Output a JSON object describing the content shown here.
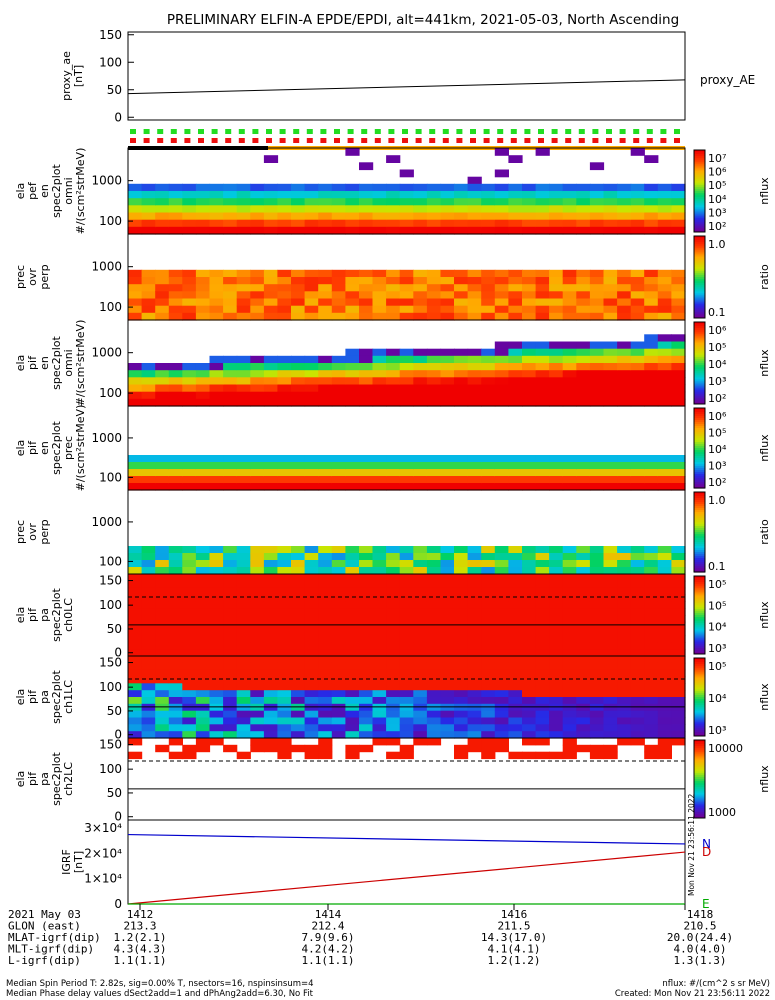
{
  "title": "PRELIMINARY ELFIN-A EPDE/EPDI, alt=441km, 2021-05-03, North Ascending",
  "chart_data": [
    {
      "type": "line",
      "panel": "proxy_ae",
      "ylabel": "proxy_ae\n[nT]",
      "legend": "proxy_AE",
      "ylim": [
        -5,
        155
      ],
      "yticks": [
        "0",
        "50",
        "100",
        "150"
      ],
      "x": [
        "14:11.0",
        "14:18.2"
      ],
      "series": [
        {
          "name": "proxy_AE",
          "values": [
            43,
            68
          ]
        }
      ]
    },
    {
      "type": "heatmap",
      "panel": "ela pef en spec2plot omni",
      "ylabel": "ela\npef\nen\nspec2plot\nomni\n#/(scm²strMeV)",
      "yticks": [
        "100",
        "1000"
      ],
      "colorbar": {
        "unit": "nflux",
        "ticks": [
          "10⁷",
          "10⁶",
          "10⁵",
          "10⁴",
          "10³",
          "10²"
        ]
      }
    },
    {
      "type": "heatmap",
      "panel": "prec ovr perp (electrons)",
      "ylabel": "prec\novr\nperp",
      "yticks": [
        "100",
        "1000"
      ],
      "colorbar": {
        "unit": "ratio",
        "ticks": [
          "1.0",
          "0.1"
        ]
      }
    },
    {
      "type": "heatmap",
      "panel": "ela pif en spec2plot omni",
      "ylabel": "ela\npif\nen\nspec2plot\nomni\n#/(scm²strMeV)",
      "yticks": [
        "100",
        "1000"
      ],
      "colorbar": {
        "unit": "nflux",
        "ticks": [
          "10⁶",
          "10⁵",
          "10⁴",
          "10³",
          "10²"
        ]
      }
    },
    {
      "type": "heatmap",
      "panel": "ela pif en spec2plot prec",
      "ylabel": "ela\npif\nen\nspec2plot\nprec\n#/(scm²strMeV)",
      "yticks": [
        "100",
        "1000"
      ],
      "colorbar": {
        "unit": "nflux",
        "ticks": [
          "10⁶",
          "10⁵",
          "10⁴",
          "10³",
          "10²"
        ]
      }
    },
    {
      "type": "heatmap",
      "panel": "prec ovr perp (ions)",
      "ylabel": "prec\novr\nperp",
      "yticks": [
        "100",
        "1000"
      ],
      "colorbar": {
        "unit": "ratio",
        "ticks": [
          "1.0",
          "0.1"
        ]
      }
    },
    {
      "type": "heatmap",
      "panel": "ela pif pa spec2plot ch0LC",
      "ylabel": "ela\npif\npa\nspec2plot\nch0LC",
      "yticks": [
        "0",
        "50",
        "100",
        "150"
      ],
      "colorbar": {
        "unit": "nflux",
        "ticks": [
          "10⁵",
          "10⁵",
          "10⁴",
          "10³"
        ]
      }
    },
    {
      "type": "heatmap",
      "panel": "ela pif pa spec2plot ch1LC",
      "ylabel": "ela\npif\npa\nspec2plot\nch1LC",
      "yticks": [
        "0",
        "50",
        "100",
        "150"
      ],
      "colorbar": {
        "unit": "nflux",
        "ticks": [
          "10⁵",
          "10⁴",
          "10³"
        ]
      }
    },
    {
      "type": "heatmap",
      "panel": "ela pif pa spec2plot ch2LC",
      "ylabel": "ela\npif\npa\nspec2plot\nch2LC",
      "yticks": [
        "0",
        "50",
        "100",
        "150"
      ],
      "colorbar": {
        "unit": "nflux",
        "ticks": [
          "10000",
          "1000"
        ]
      }
    },
    {
      "type": "line",
      "panel": "IGRF",
      "ylabel": "IGRF\n[nT]",
      "ylim": [
        0,
        30000
      ],
      "yticks": [
        "0",
        "1×10⁴",
        "2×10⁴",
        "3×10⁴"
      ],
      "series": [
        {
          "name": "N",
          "color": "#0000cc",
          "values": [
            27400,
            23700
          ]
        },
        {
          "name": "D",
          "color": "#cc0000",
          "values": [
            0,
            20500
          ]
        },
        {
          "name": "E",
          "color": "#00aa00",
          "values": [
            0,
            0
          ]
        }
      ],
      "side_text": "Mon Nov 21 23:56:11 2022"
    }
  ],
  "footer": {
    "rows": [
      {
        "label": "2021 May 03",
        "values": [
          "1412",
          "1414",
          "1416",
          "1418"
        ]
      },
      {
        "label": "GLON (east)",
        "values": [
          "213.3",
          "212.4",
          "211.5",
          "210.5"
        ]
      },
      {
        "label": "MLAT-igrf(dip)",
        "values": [
          "1.2(2.1)",
          "7.9(9.6)",
          "14.3(17.0)",
          "20.0(24.4)"
        ]
      },
      {
        "label": "MLT-igrf(dip)",
        "values": [
          "4.3(4.3)",
          "4.2(4.2)",
          "4.1(4.1)",
          "4.0(4.0)"
        ]
      },
      {
        "label": "L-igrf(dip)",
        "values": [
          "1.1(1.1)",
          "1.1(1.1)",
          "1.2(1.2)",
          "1.3(1.3)"
        ]
      }
    ],
    "note1": "Median Spin Period T: 2.82s, sig=0.00% T, nsectors=16, nspinsinsum=4",
    "note2": "Median Phase delay values dSect2add=1 and dPhAng2add=6.30, No Fit",
    "unit_note": "nflux: #/(cm^2 s sr MeV)",
    "created": "Created: Mon Nov 21 23:56:11 2022"
  }
}
